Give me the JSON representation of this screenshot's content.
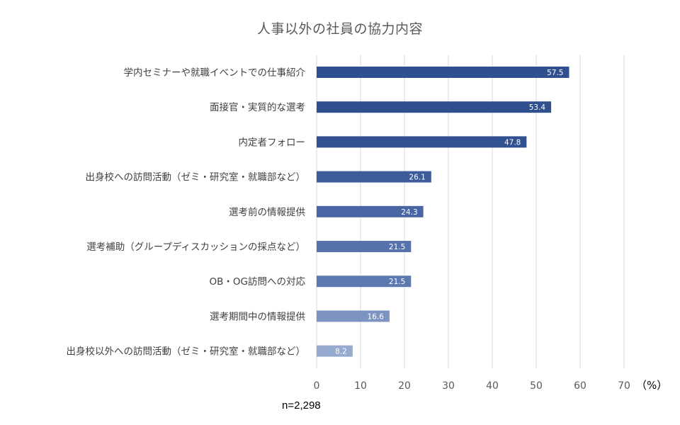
{
  "chart_data": {
    "type": "bar",
    "orientation": "horizontal",
    "title": "人事以外の社員の協力内容",
    "unit_label": "（%）",
    "note": "n=2,298",
    "xlim": [
      0,
      70
    ],
    "x_ticks": [
      "0",
      "10",
      "20",
      "30",
      "40",
      "50",
      "60",
      "70"
    ],
    "grid": true,
    "data_labels": true,
    "categories": [
      "学内セミナーや就職イベントでの仕事紹介",
      "面接官・実質的な選考",
      "内定者フォロー",
      "出身校への訪問活動（ゼミ・研究室・就職部など）",
      "選考前の情報提供",
      "選考補助（グループディスカッションの採点など）",
      "OB・OG訪問への対応",
      "選考期間中の情報提供",
      "出身校以外への訪問活動（ゼミ・研究室・就職部など）"
    ],
    "values": [
      57.5,
      53.4,
      47.8,
      26.1,
      24.3,
      21.5,
      21.5,
      16.6,
      8.2
    ],
    "value_labels": [
      "57.5",
      "53.4",
      "47.8",
      "26.1",
      "24.3",
      "21.5",
      "21.5",
      "16.6",
      "8.2"
    ],
    "bar_colors": [
      "#2f4f8f",
      "#2f4f8f",
      "#30508f",
      "#3c5c9a",
      "#4766a3",
      "#5572ac",
      "#5d79b0",
      "#7d94c2",
      "#96a9cf"
    ],
    "grid_color": "#d9d9d9",
    "label_color": "#404040",
    "tick_color": "#595959",
    "value_label_color": "#ffffff"
  }
}
